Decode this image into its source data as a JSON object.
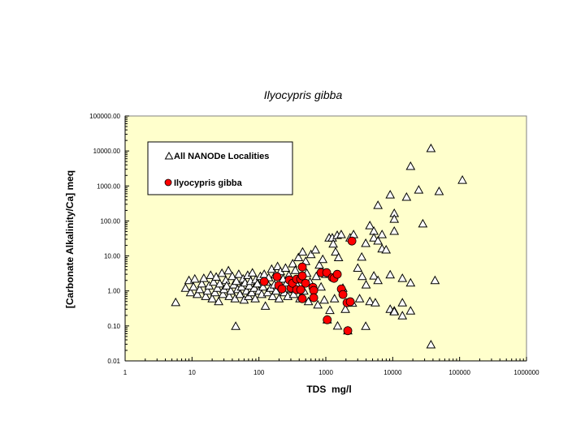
{
  "chart_data": {
    "type": "scatter",
    "title": "Ilyocypris gibba",
    "xlabel": "TDS  mg/l",
    "ylabel": "[Carbonate Alkalinity/Ca] meq",
    "xscale": "log",
    "yscale": "log",
    "xlim": [
      1,
      1000000
    ],
    "ylim": [
      0.01,
      100000
    ],
    "xticks": [
      "1",
      "10",
      "100",
      "1000",
      "10000",
      "100000",
      "1000000"
    ],
    "yticks": [
      "0.01",
      "0.10",
      "1.00",
      "10.00",
      "100.00",
      "1000.00",
      "10000.00",
      "100000.00"
    ],
    "grid": false,
    "legend_position": "top-left",
    "background_color": "#FFFFCC",
    "series": [
      {
        "name": "All NANODe Localities",
        "marker": "triangle-open",
        "color": "#000000",
        "points": [
          [
            5.7,
            0.47
          ],
          [
            8,
            1.2
          ],
          [
            9,
            2.0
          ],
          [
            9.5,
            0.9
          ],
          [
            10.5,
            1.3
          ],
          [
            11,
            2.2
          ],
          [
            12,
            0.8
          ],
          [
            13,
            1.1
          ],
          [
            14,
            1.6
          ],
          [
            15,
            2.3
          ],
          [
            16,
            0.7
          ],
          [
            17,
            1.0
          ],
          [
            18,
            1.4
          ],
          [
            19,
            2.8
          ],
          [
            20,
            0.6
          ],
          [
            21,
            1.8
          ],
          [
            22,
            0.9
          ],
          [
            23,
            2.5
          ],
          [
            24,
            1.2
          ],
          [
            25,
            0.5
          ],
          [
            26,
            1.6
          ],
          [
            28,
            3.2
          ],
          [
            29,
            0.8
          ],
          [
            30,
            1.1
          ],
          [
            32,
            2.0
          ],
          [
            33,
            1.4
          ],
          [
            35,
            3.8
          ],
          [
            36,
            0.7
          ],
          [
            38,
            1.0
          ],
          [
            40,
            2.6
          ],
          [
            42,
            1.5
          ],
          [
            44,
            0.6
          ],
          [
            45,
            0.098
          ],
          [
            46,
            1.9
          ],
          [
            48,
            1.1
          ],
          [
            50,
            3.0
          ],
          [
            52,
            0.8
          ],
          [
            55,
            1.3
          ],
          [
            58,
            2.2
          ],
          [
            60,
            0.55
          ],
          [
            62,
            1.7
          ],
          [
            65,
            1.0
          ],
          [
            68,
            2.8
          ],
          [
            70,
            0.7
          ],
          [
            72,
            1.4
          ],
          [
            75,
            1.9
          ],
          [
            78,
            0.9
          ],
          [
            80,
            3.3
          ],
          [
            85,
            1.2
          ],
          [
            88,
            0.6
          ],
          [
            90,
            2.1
          ],
          [
            95,
            1.6
          ],
          [
            100,
            1.0
          ],
          [
            105,
            2.6
          ],
          [
            110,
            0.8
          ],
          [
            115,
            1.3
          ],
          [
            120,
            3.0
          ],
          [
            125,
            0.37
          ],
          [
            130,
            1.8
          ],
          [
            135,
            0.9
          ],
          [
            140,
            2.4
          ],
          [
            150,
            1.2
          ],
          [
            155,
            4.2
          ],
          [
            160,
            0.7
          ],
          [
            170,
            1.5
          ],
          [
            175,
            2.9
          ],
          [
            180,
            1.0
          ],
          [
            190,
            5.0
          ],
          [
            200,
            0.6
          ],
          [
            210,
            3.6
          ],
          [
            220,
            1.3
          ],
          [
            230,
            2.2
          ],
          [
            240,
            0.9
          ],
          [
            250,
            4.5
          ],
          [
            260,
            1.7
          ],
          [
            270,
            0.7
          ],
          [
            280,
            2.8
          ],
          [
            300,
            1.1
          ],
          [
            320,
            6.0
          ],
          [
            330,
            0.8
          ],
          [
            350,
            3.9
          ],
          [
            370,
            1.5
          ],
          [
            390,
            9.0
          ],
          [
            410,
            0.6
          ],
          [
            430,
            2.4
          ],
          [
            450,
            13.0
          ],
          [
            470,
            1.0
          ],
          [
            500,
            7.0
          ],
          [
            520,
            3.2
          ],
          [
            550,
            0.5
          ],
          [
            580,
            1.8
          ],
          [
            600,
            11.0
          ],
          [
            650,
            0.75
          ],
          [
            700,
            15.0
          ],
          [
            720,
            2.6
          ],
          [
            760,
            0.4
          ],
          [
            800,
            5.5
          ],
          [
            850,
            1.3
          ],
          [
            900,
            8.0
          ],
          [
            950,
            0.55
          ],
          [
            1000,
            3.0
          ],
          [
            1050,
            0.15
          ],
          [
            1120,
            33
          ],
          [
            1150,
            0.28
          ],
          [
            1250,
            33
          ],
          [
            1290,
            22
          ],
          [
            1350,
            0.6
          ],
          [
            1400,
            13
          ],
          [
            1480,
            39
          ],
          [
            1500,
            0.1
          ],
          [
            1550,
            9.0
          ],
          [
            1700,
            41
          ],
          [
            1800,
            1.2
          ],
          [
            1960,
            0.3
          ],
          [
            2130,
            0.073
          ],
          [
            2300,
            33
          ],
          [
            2500,
            0.45
          ],
          [
            2600,
            41
          ],
          [
            3000,
            4.5
          ],
          [
            3200,
            0.6
          ],
          [
            3440,
            9.3
          ],
          [
            3500,
            2.6
          ],
          [
            3950,
            23
          ],
          [
            3950,
            0.098
          ],
          [
            4000,
            1.5
          ],
          [
            4550,
            74
          ],
          [
            4550,
            0.5
          ],
          [
            5230,
            51
          ],
          [
            5230,
            33
          ],
          [
            5230,
            2.7
          ],
          [
            5500,
            0.46
          ],
          [
            6020,
            280
          ],
          [
            6020,
            27
          ],
          [
            6020,
            2.0
          ],
          [
            6930,
            41
          ],
          [
            6930,
            16
          ],
          [
            7970,
            15
          ],
          [
            9170,
            560
          ],
          [
            9170,
            2.9
          ],
          [
            9170,
            0.3
          ],
          [
            10550,
            165
          ],
          [
            10550,
            113
          ],
          [
            10550,
            51
          ],
          [
            10550,
            0.27
          ],
          [
            10550,
            0.256
          ],
          [
            13960,
            2.3
          ],
          [
            13960,
            0.46
          ],
          [
            13960,
            0.196
          ],
          [
            16100,
            480
          ],
          [
            18500,
            3650
          ],
          [
            18500,
            1.7
          ],
          [
            18500,
            0.27
          ],
          [
            24500,
            770
          ],
          [
            28200,
            83
          ],
          [
            37300,
            11800
          ],
          [
            37300,
            0.029
          ],
          [
            42900,
            2.0
          ],
          [
            49400,
            700
          ],
          [
            110000,
            1470
          ]
        ]
      },
      {
        "name": "Ilyocypris gibba",
        "marker": "circle-filled",
        "color": "#FF0000",
        "points": [
          [
            120,
            1.85
          ],
          [
            187,
            2.55
          ],
          [
            198,
            1.42
          ],
          [
            221,
            1.14
          ],
          [
            285,
            2.06
          ],
          [
            301,
            1.21
          ],
          [
            318,
            1.66
          ],
          [
            366,
            2.17
          ],
          [
            366,
            1.08
          ],
          [
            421,
            2.17
          ],
          [
            421,
            1.08
          ],
          [
            445,
            4.83
          ],
          [
            445,
            2.69
          ],
          [
            445,
            0.6
          ],
          [
            498,
            1.66
          ],
          [
            641,
            1.27
          ],
          [
            659,
            1.03
          ],
          [
            659,
            0.64
          ],
          [
            848,
            3.33
          ],
          [
            1030,
            3.33
          ],
          [
            1050,
            0.15
          ],
          [
            1253,
            2.41
          ],
          [
            1326,
            2.29
          ],
          [
            1483,
            2.99
          ],
          [
            1706,
            1.14
          ],
          [
            1803,
            0.79
          ],
          [
            2075,
            0.46
          ],
          [
            2322,
            0.49
          ],
          [
            2130,
            0.073
          ],
          [
            2455,
            26.7
          ]
        ]
      }
    ]
  }
}
